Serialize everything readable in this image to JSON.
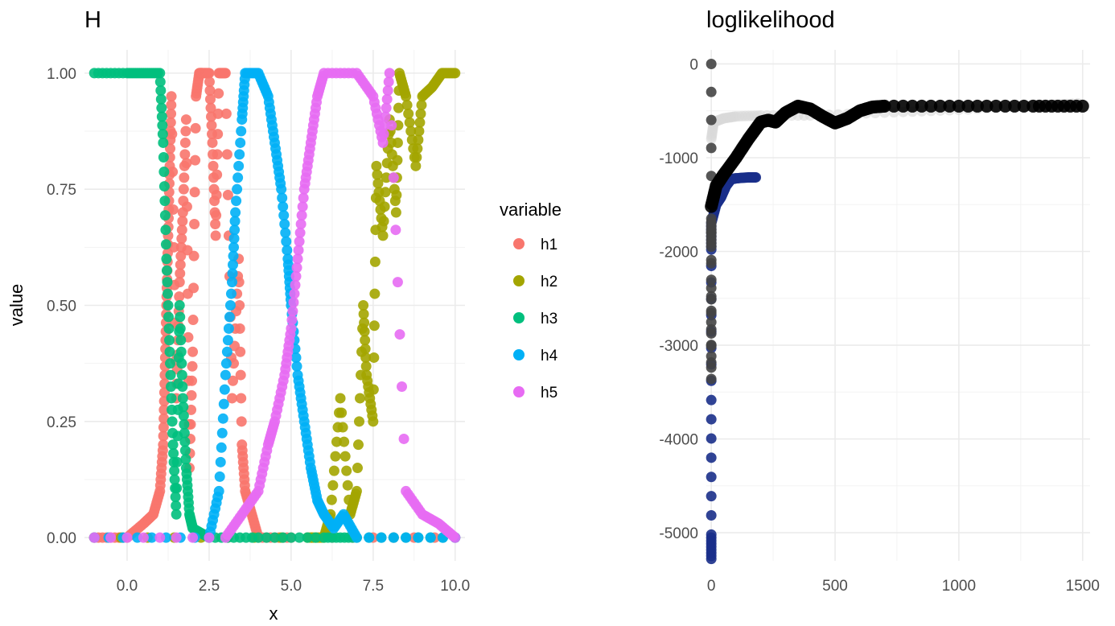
{
  "chart_data": [
    {
      "type": "scatter",
      "title": "H",
      "xlabel": "x",
      "ylabel": "value",
      "xlim": [
        -1.3,
        10.3
      ],
      "ylim": [
        -0.05,
        1.05
      ],
      "xticks": [
        0.0,
        2.5,
        5.0,
        7.5,
        10.0
      ],
      "xtick_labels": [
        "0.0",
        "2.5",
        "5.0",
        "7.5",
        "10.0"
      ],
      "yticks": [
        0,
        0.25,
        0.5,
        0.75,
        1.0
      ],
      "ytick_labels": [
        "0.00",
        "0.25",
        "0.50",
        "0.75",
        "1.00"
      ],
      "grid": true,
      "legend": {
        "title": "variable",
        "placement": "right",
        "entries": [
          "h1",
          "h2",
          "h3",
          "h4",
          "h5"
        ]
      },
      "series": [
        {
          "name": "h1",
          "color": "#F8766D",
          "points": [
            [
              -1.0,
              0.0
            ],
            [
              0.0,
              0.0
            ],
            [
              0.5,
              0.03
            ],
            [
              0.8,
              0.05
            ],
            [
              1.0,
              0.1
            ],
            [
              1.1,
              0.2
            ],
            [
              1.15,
              0.35
            ],
            [
              1.2,
              0.5
            ],
            [
              1.25,
              0.65
            ],
            [
              1.3,
              0.8
            ],
            [
              1.35,
              0.95
            ],
            [
              1.5,
              0.3
            ],
            [
              1.6,
              0.55
            ],
            [
              1.7,
              0.7
            ],
            [
              1.8,
              0.9
            ],
            [
              1.9,
              0.15
            ],
            [
              2.0,
              0.4
            ],
            [
              2.1,
              0.95
            ],
            [
              2.2,
              1.0
            ],
            [
              2.3,
              1.0
            ],
            [
              2.5,
              1.0
            ],
            [
              2.6,
              0.85
            ],
            [
              2.7,
              0.65
            ],
            [
              2.8,
              1.0
            ],
            [
              3.0,
              1.0
            ],
            [
              3.2,
              0.3
            ],
            [
              3.4,
              0.6
            ],
            [
              3.5,
              0.2
            ],
            [
              3.6,
              0.1
            ],
            [
              3.8,
              0.05
            ],
            [
              4.0,
              0.0
            ],
            [
              5.0,
              0.0
            ],
            [
              10.0,
              0.0
            ]
          ]
        },
        {
          "name": "h2",
          "color": "#A3A500",
          "points": [
            [
              -1.0,
              0.0
            ],
            [
              5.5,
              0.0
            ],
            [
              6.0,
              0.0
            ],
            [
              6.2,
              0.05
            ],
            [
              6.5,
              0.3
            ],
            [
              6.8,
              0.05
            ],
            [
              7.0,
              0.1
            ],
            [
              7.2,
              0.5
            ],
            [
              7.3,
              0.35
            ],
            [
              7.5,
              0.25
            ],
            [
              7.6,
              0.8
            ],
            [
              7.8,
              0.65
            ],
            [
              8.0,
              0.9
            ],
            [
              8.2,
              0.7
            ],
            [
              8.3,
              1.0
            ],
            [
              8.5,
              0.95
            ],
            [
              8.8,
              0.8
            ],
            [
              9.0,
              0.95
            ],
            [
              9.3,
              0.97
            ],
            [
              9.6,
              1.0
            ],
            [
              10.0,
              1.0
            ]
          ]
        },
        {
          "name": "h3",
          "color": "#00BF7D",
          "points": [
            [
              -1.0,
              1.0
            ],
            [
              0.0,
              1.0
            ],
            [
              0.5,
              1.0
            ],
            [
              1.0,
              1.0
            ],
            [
              1.1,
              0.85
            ],
            [
              1.2,
              0.6
            ],
            [
              1.3,
              0.4
            ],
            [
              1.4,
              0.2
            ],
            [
              1.5,
              0.05
            ],
            [
              1.6,
              0.5
            ],
            [
              1.7,
              0.3
            ],
            [
              1.8,
              0.15
            ],
            [
              1.9,
              0.05
            ],
            [
              2.0,
              0.02
            ],
            [
              2.5,
              0.0
            ],
            [
              4.0,
              0.0
            ],
            [
              6.0,
              0.0
            ],
            [
              7.0,
              0.0
            ],
            [
              10.0,
              0.0
            ]
          ]
        },
        {
          "name": "h4",
          "color": "#00B0F6",
          "points": [
            [
              -1.0,
              0.0
            ],
            [
              2.5,
              0.0
            ],
            [
              2.8,
              0.1
            ],
            [
              3.0,
              0.35
            ],
            [
              3.2,
              0.55
            ],
            [
              3.3,
              0.7
            ],
            [
              3.5,
              0.9
            ],
            [
              3.6,
              1.0
            ],
            [
              4.0,
              1.0
            ],
            [
              4.3,
              0.95
            ],
            [
              4.5,
              0.85
            ],
            [
              4.7,
              0.75
            ],
            [
              4.9,
              0.6
            ],
            [
              5.0,
              0.5
            ],
            [
              5.2,
              0.35
            ],
            [
              5.4,
              0.25
            ],
            [
              5.6,
              0.15
            ],
            [
              5.8,
              0.08
            ],
            [
              6.0,
              0.05
            ],
            [
              6.3,
              0.02
            ],
            [
              6.6,
              0.05
            ],
            [
              7.0,
              0.0
            ],
            [
              10.0,
              0.0
            ]
          ]
        },
        {
          "name": "h5",
          "color": "#E76BF3",
          "points": [
            [
              -1.0,
              0.0
            ],
            [
              3.0,
              0.0
            ],
            [
              3.5,
              0.05
            ],
            [
              4.0,
              0.1
            ],
            [
              4.3,
              0.2
            ],
            [
              4.5,
              0.25
            ],
            [
              4.8,
              0.35
            ],
            [
              5.0,
              0.45
            ],
            [
              5.2,
              0.6
            ],
            [
              5.4,
              0.75
            ],
            [
              5.6,
              0.85
            ],
            [
              5.8,
              0.95
            ],
            [
              6.0,
              1.0
            ],
            [
              7.0,
              1.0
            ],
            [
              7.5,
              0.95
            ],
            [
              7.8,
              0.85
            ],
            [
              8.0,
              1.0
            ],
            [
              8.5,
              0.1
            ],
            [
              9.0,
              0.05
            ],
            [
              9.5,
              0.03
            ],
            [
              10.0,
              0.0
            ]
          ]
        }
      ]
    },
    {
      "type": "scatter",
      "title": "loglikelihood",
      "xlabel": "",
      "ylabel": "",
      "xlim": [
        -20,
        1530
      ],
      "ylim": [
        -5300,
        150
      ],
      "xticks": [
        0,
        500,
        1000,
        1500
      ],
      "xtick_labels": [
        "0",
        "500",
        "1000",
        "1500"
      ],
      "yticks": [
        0,
        -1000,
        -2000,
        -3000,
        -4000,
        -5000
      ],
      "ytick_labels": [
        "0",
        "-1000",
        "-2000",
        "-3000",
        "-4000",
        "-5000"
      ],
      "grid": true,
      "series": [
        {
          "color": "#d9d9d9",
          "points": [
            [
              0,
              -800
            ],
            [
              10,
              -620
            ],
            [
              50,
              -580
            ],
            [
              100,
              -560
            ],
            [
              200,
              -550
            ],
            [
              400,
              -550
            ],
            [
              700,
              -520
            ],
            [
              1000,
              -490
            ],
            [
              1300,
              -450
            ],
            [
              1480,
              -420
            ]
          ]
        },
        {
          "color": "#1a2f8a",
          "points": [
            [
              0,
              -5280
            ],
            [
              0,
              -5020
            ],
            [
              0,
              -3380
            ],
            [
              0,
              -1980
            ],
            [
              0,
              -1700
            ],
            [
              20,
              -1500
            ],
            [
              40,
              -1420
            ],
            [
              60,
              -1300
            ],
            [
              80,
              -1230
            ],
            [
              100,
              -1220
            ],
            [
              150,
              -1210
            ],
            [
              180,
              -1210
            ]
          ]
        },
        {
          "color": "#444444",
          "points": [
            [
              0,
              0
            ],
            [
              0,
              -2390
            ],
            [
              0,
              -3360
            ],
            [
              0,
              -1950
            ],
            [
              0,
              -1650
            ]
          ]
        },
        {
          "color": "#000000",
          "points": [
            [
              0,
              -1520
            ],
            [
              20,
              -1300
            ],
            [
              50,
              -1180
            ],
            [
              100,
              -1000
            ],
            [
              150,
              -800
            ],
            [
              200,
              -620
            ],
            [
              230,
              -600
            ],
            [
              260,
              -620
            ],
            [
              300,
              -520
            ],
            [
              350,
              -450
            ],
            [
              400,
              -480
            ],
            [
              450,
              -560
            ],
            [
              500,
              -630
            ],
            [
              550,
              -580
            ],
            [
              600,
              -500
            ],
            [
              650,
              -460
            ],
            [
              700,
              -450
            ],
            [
              1000,
              -450
            ],
            [
              1300,
              -450
            ],
            [
              1500,
              -450
            ]
          ]
        }
      ]
    }
  ]
}
